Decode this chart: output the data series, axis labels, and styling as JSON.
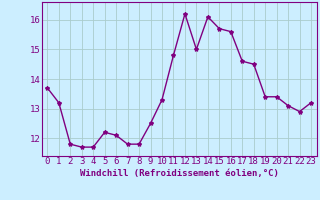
{
  "x": [
    0,
    1,
    2,
    3,
    4,
    5,
    6,
    7,
    8,
    9,
    10,
    11,
    12,
    13,
    14,
    15,
    16,
    17,
    18,
    19,
    20,
    21,
    22,
    23
  ],
  "y": [
    13.7,
    13.2,
    11.8,
    11.7,
    11.7,
    12.2,
    12.1,
    11.8,
    11.8,
    12.5,
    13.3,
    14.8,
    16.2,
    15.0,
    16.1,
    15.7,
    15.6,
    14.6,
    14.5,
    13.4,
    13.4,
    13.1,
    12.9,
    13.2
  ],
  "line_color": "#800080",
  "marker": "*",
  "marker_size": 3,
  "xlabel": "Windchill (Refroidissement éolien,°C)",
  "xlabel_fontsize": 6.5,
  "xtick_labels": [
    "0",
    "1",
    "2",
    "3",
    "4",
    "5",
    "6",
    "7",
    "8",
    "9",
    "10",
    "11",
    "12",
    "13",
    "14",
    "15",
    "16",
    "17",
    "18",
    "19",
    "20",
    "21",
    "22",
    "23"
  ],
  "ytick_values": [
    12,
    13,
    14,
    15,
    16
  ],
  "ytick_labels": [
    "12",
    "13",
    "14",
    "15",
    "16"
  ],
  "ylim": [
    11.4,
    16.6
  ],
  "xlim": [
    -0.5,
    23.5
  ],
  "background_color": "#cceeff",
  "grid_color": "#aacccc",
  "tick_color": "#800080",
  "tick_fontsize": 6.5,
  "linewidth": 1.0
}
